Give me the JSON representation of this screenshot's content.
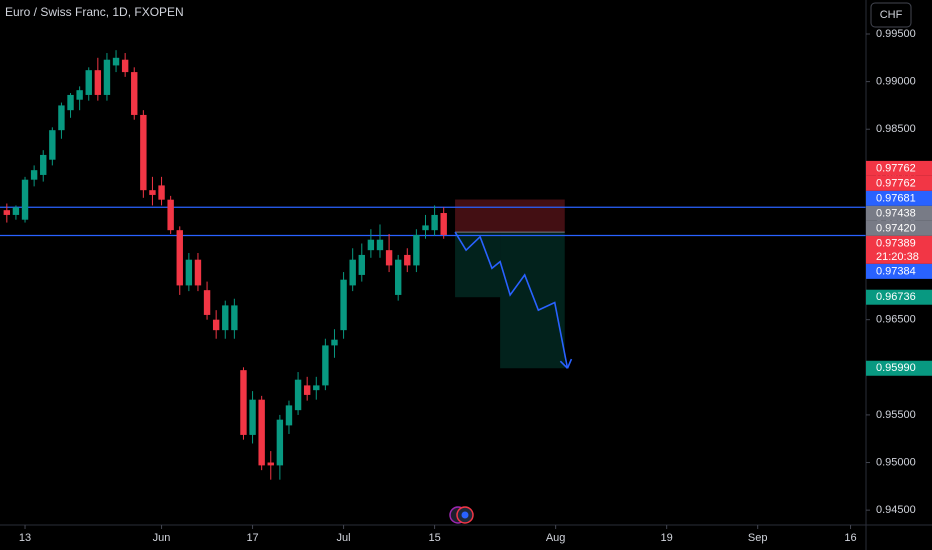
{
  "chart_data": {
    "type": "candlestick",
    "title": "Euro / Swiss Franc, 1D, FXOPEN",
    "currency": "CHF",
    "up_color": "#089981",
    "down_color": "#f23645",
    "x": [
      -2,
      -1,
      0,
      1,
      2,
      3,
      4,
      5,
      6,
      7,
      8,
      9,
      10,
      11,
      12,
      13,
      14,
      15,
      16,
      17,
      18,
      19,
      20,
      21,
      22,
      23,
      24,
      25,
      26,
      27,
      28,
      29,
      30,
      31,
      32,
      33,
      34,
      35,
      36,
      37,
      38,
      39,
      40,
      41,
      42,
      43,
      44,
      45,
      46
    ],
    "open": [
      0.9765,
      0.976,
      0.9755,
      0.9797,
      0.9802,
      0.9818,
      0.9849,
      0.987,
      0.9881,
      0.9886,
      0.9912,
      0.9886,
      0.9917,
      0.9923,
      0.991,
      0.9865,
      0.9786,
      0.9791,
      0.9776,
      0.9744,
      0.9686,
      0.9713,
      0.9681,
      0.965,
      0.9639,
      0.9639,
      0.9597,
      0.9529,
      0.9566,
      0.95,
      0.9497,
      0.9539,
      0.9555,
      0.9581,
      0.9576,
      0.9581,
      0.9623,
      0.9639,
      0.9686,
      0.9697,
      0.9723,
      0.9723,
      0.9723,
      0.9676,
      0.9718,
      0.9707,
      0.9744,
      0.9744,
      0.9762
    ],
    "high": [
      0.9772,
      0.977,
      0.98,
      0.9812,
      0.9828,
      0.9852,
      0.9878,
      0.9888,
      0.9895,
      0.9915,
      0.9925,
      0.993,
      0.9933,
      0.993,
      0.9915,
      0.987,
      0.98,
      0.98,
      0.978,
      0.9748,
      0.972,
      0.972,
      0.969,
      0.966,
      0.967,
      0.9672,
      0.96,
      0.9575,
      0.957,
      0.9512,
      0.955,
      0.9565,
      0.9595,
      0.959,
      0.959,
      0.963,
      0.964,
      0.97,
      0.9725,
      0.973,
      0.9745,
      0.975,
      0.974,
      0.9718,
      0.9725,
      0.9745,
      0.976,
      0.977,
      0.9768
    ],
    "low": [
      0.9752,
      0.9755,
      0.9752,
      0.979,
      0.9795,
      0.9812,
      0.984,
      0.9862,
      0.987,
      0.988,
      0.988,
      0.988,
      0.991,
      0.9905,
      0.986,
      0.9778,
      0.977,
      0.977,
      0.974,
      0.9676,
      0.968,
      0.968,
      0.965,
      0.963,
      0.963,
      0.963,
      0.9524,
      0.952,
      0.9492,
      0.9482,
      0.9482,
      0.953,
      0.955,
      0.9565,
      0.9566,
      0.9576,
      0.961,
      0.963,
      0.968,
      0.969,
      0.9715,
      0.9715,
      0.97,
      0.967,
      0.97,
      0.97,
      0.9735,
      0.9738,
      0.9735
    ],
    "close": [
      0.976,
      0.9768,
      0.9797,
      0.9807,
      0.9823,
      0.9849,
      0.9875,
      0.9886,
      0.9891,
      0.9912,
      0.9886,
      0.9923,
      0.9925,
      0.991,
      0.9865,
      0.9786,
      0.9781,
      0.9776,
      0.9744,
      0.9686,
      0.9713,
      0.9686,
      0.9655,
      0.9639,
      0.9665,
      0.9665,
      0.9529,
      0.9566,
      0.9497,
      0.9497,
      0.9545,
      0.956,
      0.9587,
      0.9571,
      0.9581,
      0.9623,
      0.9629,
      0.9692,
      0.9713,
      0.9718,
      0.9734,
      0.9734,
      0.9707,
      0.9713,
      0.9707,
      0.9739,
      0.9749,
      0.976,
      0.9739
    ],
    "xlim": [
      -2.75,
      92.4
    ],
    "ylim": [
      0.94344,
      0.99857
    ],
    "xticks": [
      {
        "value": 0,
        "label": "13"
      },
      {
        "value": 15,
        "label": "Jun"
      },
      {
        "value": 25,
        "label": "17"
      },
      {
        "value": 35,
        "label": "Jul"
      },
      {
        "value": 45,
        "label": "15"
      },
      {
        "value": 58.3,
        "label": "Aug"
      },
      {
        "value": 70.5,
        "label": "19"
      },
      {
        "value": 80.5,
        "label": "Sep"
      },
      {
        "value": 90.7,
        "label": "16"
      }
    ],
    "yticks": [
      {
        "value": 0.945,
        "label": "0.94500"
      },
      {
        "value": 0.95,
        "label": "0.95000"
      },
      {
        "value": 0.955,
        "label": "0.95500"
      },
      {
        "value": 0.96,
        "label": "0.96000"
      },
      {
        "value": 0.965,
        "label": "0.96500"
      },
      {
        "value": 0.97,
        "label": "0.97000"
      },
      {
        "value": 0.975,
        "label": "0.97500"
      },
      {
        "value": 0.98,
        "label": "0.98000"
      },
      {
        "value": 0.985,
        "label": "0.98500"
      },
      {
        "value": 0.99,
        "label": "0.99000"
      },
      {
        "value": 0.995,
        "label": "0.99500"
      }
    ],
    "hlines": [
      {
        "value": 0.97681,
        "color": "#2962ff"
      },
      {
        "value": 0.97384,
        "color": "#2962ff"
      }
    ],
    "price_labels": [
      {
        "value": 0.97762,
        "color": "#f23645"
      },
      {
        "value": 0.97762,
        "color": "#f23645"
      },
      {
        "value": 0.97681,
        "color": "#2962ff"
      },
      {
        "value": 0.97438,
        "color": "#787b86"
      },
      {
        "value": {
          "value": 0.9742,
          "label": "0.97420"
        },
        "color": "#787b86"
      },
      {
        "value": 0.97389,
        "color": "#f23645",
        "countdown": "21:20:38"
      },
      {
        "value": 0.97384,
        "color": "#2962ff"
      },
      {
        "value": 0.96736,
        "color": "#089981"
      },
      {
        "value": {
          "value": 0.9599,
          "label": "0.95990"
        },
        "color": "#089981"
      }
    ],
    "position": {
      "x": [
        47.25,
        52.2,
        59.3
      ],
      "entry": 0.9742,
      "stop": 0.97762,
      "targets": [
        0.96736,
        0.9599
      ]
    },
    "projection": {
      "color": "#2962ff",
      "x": [
        47.25,
        48.46,
        50,
        51.3,
        52.2,
        53.3,
        54.9,
        56.4,
        58.2,
        59.6
      ],
      "y": [
        0.9742,
        0.9723,
        0.9737,
        0.9704,
        0.9711,
        0.9676,
        0.9697,
        0.966,
        0.9668,
        0.9599
      ]
    }
  }
}
